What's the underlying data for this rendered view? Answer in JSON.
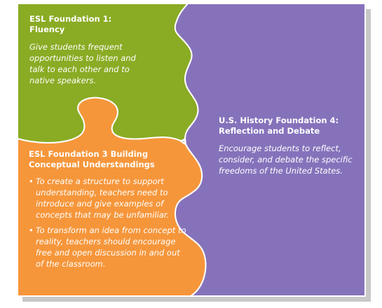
{
  "colors": {
    "green": "#8aab24",
    "orange": "#f6963b",
    "purple": "#8672bb",
    "shadow": "#c8c8c8",
    "text": "#ffffff"
  },
  "esl1": {
    "title": "ESL Foundation 1: Fluency",
    "body": "Give students frequent opportunities to listen and talk to each other and to native speakers."
  },
  "history4": {
    "title": "U.S. History Foundation 4: Reflection and Debate",
    "body": "Encourage students to reflect, consider, and debate the specific freedoms of the United States."
  },
  "esl3": {
    "title": "ESL Foundation 3 Building Conceptual Understandings",
    "bullet_symbol": "•",
    "bullets": [
      "To create a structure to support understanding, teachers need to introduce and give examples of concepts that may be unfamiliar.",
      "To transform an idea from concept to reality, teachers should encourage free and open discussion in and out of the classroom."
    ]
  }
}
